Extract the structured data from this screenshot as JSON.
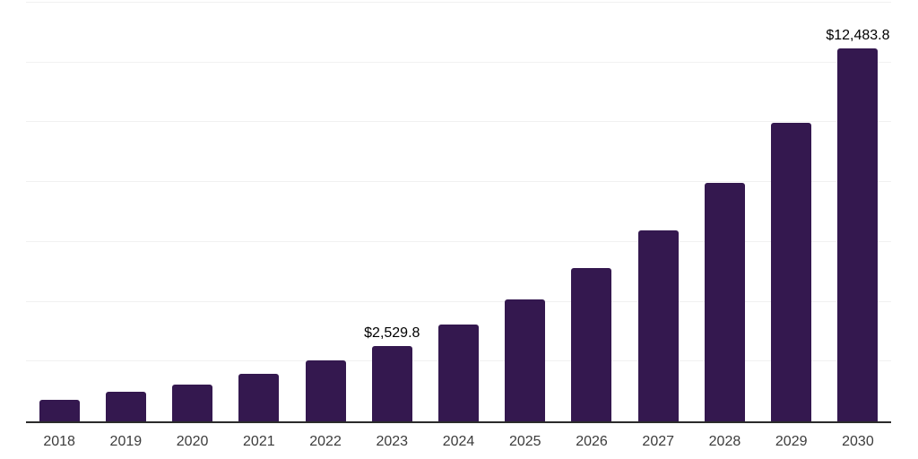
{
  "chart_data": {
    "type": "bar",
    "title": "",
    "xlabel": "",
    "ylabel": "",
    "categories": [
      "2018",
      "2019",
      "2020",
      "2021",
      "2022",
      "2023",
      "2024",
      "2025",
      "2026",
      "2027",
      "2028",
      "2029",
      "2030"
    ],
    "values": [
      730,
      980,
      1230,
      1580,
      2030,
      2529.8,
      3240,
      4070,
      5130,
      6380,
      7975,
      9990,
      12483.8
    ],
    "data_labels": {
      "2023": "$2,529.8",
      "2030": "$12,483.8"
    },
    "ylim": [
      0,
      14000
    ],
    "gridline_step": 2000,
    "grid": true,
    "legend_position": "none",
    "y_tick_labels_visible": false,
    "colors": {
      "bar": "#34184f",
      "gridline": "#f1f1f1",
      "axis": "#2b2b2b",
      "tick_label": "#3c3c3c",
      "data_label": "#000000",
      "background": "#ffffff"
    }
  }
}
